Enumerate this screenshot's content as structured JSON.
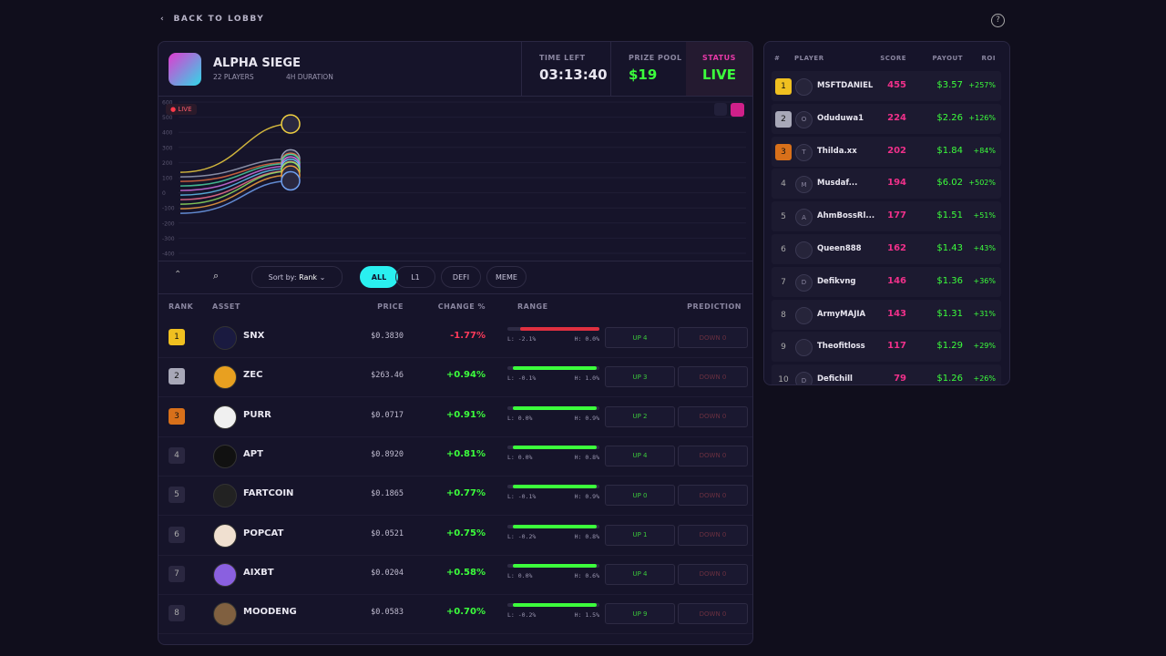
{
  "nav": {
    "back": "BACK TO LOBBY"
  },
  "game": {
    "title": "ALPHA SIEGE",
    "players": "22 PLAYERS",
    "duration": "4H DURATION",
    "time_left_label": "TIME LEFT",
    "time_left": "03:13:40",
    "prize_label": "PRIZE POOL",
    "prize": "$19",
    "status_label": "STATUS",
    "status": "LIVE"
  },
  "race_chart": {
    "badge": "LIVE",
    "ylim": [
      -400,
      600
    ],
    "yticks": [
      600,
      500,
      400,
      300,
      200,
      100,
      0,
      -100,
      -200,
      -300,
      -400
    ]
  },
  "controls": {
    "sort_label": "Sort by:",
    "sort_value": "Rank",
    "filters": [
      "ALL",
      "L1",
      "DEFI",
      "MEME"
    ]
  },
  "assets": {
    "columns": [
      "RANK",
      "ASSET",
      "PRICE",
      "CHANGE %",
      "RANGE",
      "PREDICTION"
    ],
    "rows": [
      {
        "rank": "1",
        "name": "SNX",
        "price": "$0.3830",
        "change": "-1.77%",
        "low": "L: -2.1%",
        "high": "H: 0.0%",
        "up": "UP 4",
        "down": "DOWN 0"
      },
      {
        "rank": "2",
        "name": "ZEC",
        "price": "$263.46",
        "change": "+0.94%",
        "low": "L: -0.1%",
        "high": "H: 1.0%",
        "up": "UP 3",
        "down": "DOWN 0"
      },
      {
        "rank": "3",
        "name": "PURR",
        "price": "$0.0717",
        "change": "+0.91%",
        "low": "L: 0.0%",
        "high": "H: 0.9%",
        "up": "UP 2",
        "down": "DOWN 0"
      },
      {
        "rank": "4",
        "name": "APT",
        "price": "$0.8920",
        "change": "+0.81%",
        "low": "L: 0.0%",
        "high": "H: 0.8%",
        "up": "UP 4",
        "down": "DOWN 0"
      },
      {
        "rank": "5",
        "name": "FARTCOIN",
        "price": "$0.1865",
        "change": "+0.77%",
        "low": "L: -0.1%",
        "high": "H: 0.9%",
        "up": "UP 0",
        "down": "DOWN 0"
      },
      {
        "rank": "6",
        "name": "POPCAT",
        "price": "$0.0521",
        "change": "+0.75%",
        "low": "L: -0.2%",
        "high": "H: 0.8%",
        "up": "UP 1",
        "down": "DOWN 0"
      },
      {
        "rank": "7",
        "name": "AIXBT",
        "price": "$0.0204",
        "change": "+0.58%",
        "low": "L: 0.0%",
        "high": "H: 0.6%",
        "up": "UP 4",
        "down": "DOWN 0"
      },
      {
        "rank": "8",
        "name": "MOODENG",
        "price": "$0.0583",
        "change": "+0.70%",
        "low": "L: -0.2%",
        "high": "H: 1.5%",
        "up": "UP 9",
        "down": "DOWN 0"
      }
    ]
  },
  "leaderboard": {
    "columns": [
      "#",
      "PLAYER",
      "SCORE",
      "PAYOUT",
      "ROI"
    ],
    "rows": [
      {
        "rank": "1",
        "name": "MSFTDANIEL",
        "score": 455,
        "payout": "$3.57",
        "roi": "+257%"
      },
      {
        "rank": "2",
        "avatar": "O",
        "name": "Oduduwa1",
        "score": 224,
        "payout": "$2.26",
        "roi": "+126%"
      },
      {
        "rank": "3",
        "avatar": "T",
        "name": "Thilda.xx",
        "score": 202,
        "payout": "$1.84",
        "roi": "+84%"
      },
      {
        "rank": "4",
        "avatar": "M",
        "name": "Musdaf...",
        "score": 194,
        "payout": "$6.02",
        "roi": "+502%"
      },
      {
        "rank": "5",
        "avatar": "A",
        "name": "AhmBossRl...",
        "score": 177,
        "payout": "$1.51",
        "roi": "+51%"
      },
      {
        "rank": "6",
        "name": "Queen888",
        "score": 162,
        "payout": "$1.43",
        "roi": "+43%"
      },
      {
        "rank": "7",
        "avatar": "D",
        "name": "Defikvng",
        "score": 146,
        "payout": "$1.36",
        "roi": "+36%"
      },
      {
        "rank": "8",
        "name": "ArmyMAJIA",
        "score": 143,
        "payout": "$1.31",
        "roi": "+31%"
      },
      {
        "rank": "9",
        "name": "Theofitloss",
        "score": 117,
        "payout": "$1.29",
        "roi": "+29%"
      },
      {
        "rank": "10",
        "avatar": "D",
        "name": "Defichill",
        "score": 79,
        "payout": "$1.26",
        "roi": "+26%"
      }
    ]
  }
}
